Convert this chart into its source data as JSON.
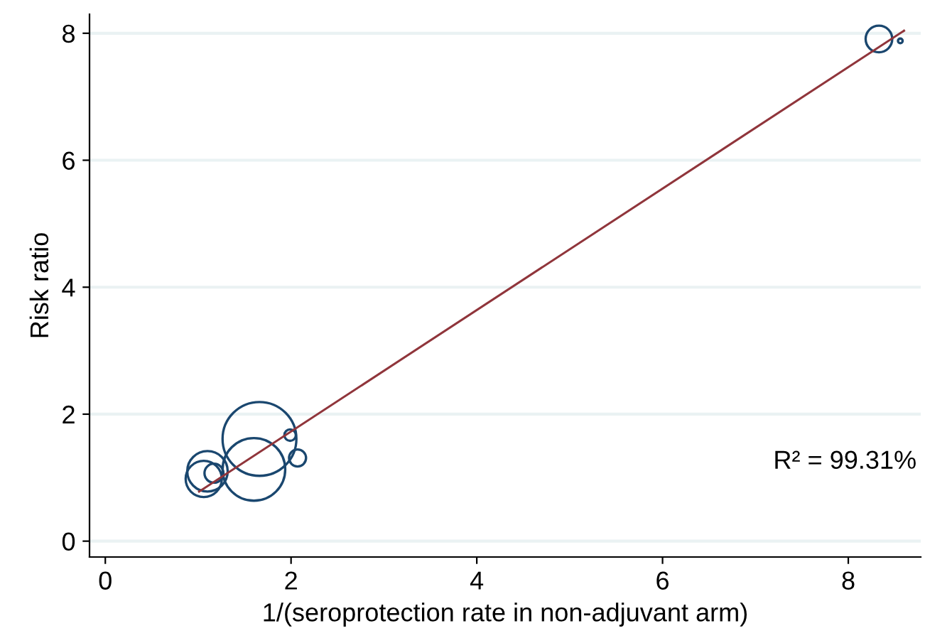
{
  "chart_data": {
    "type": "bubble",
    "xlabel": "1/(seroprotection rate in non-adjuvant arm)",
    "ylabel": "Risk ratio",
    "xlim": [
      -0.17,
      8.78
    ],
    "ylim": [
      -0.25,
      8.3
    ],
    "xticks": [
      0,
      2,
      4,
      6,
      8
    ],
    "yticks": [
      0,
      2,
      4,
      6,
      8
    ],
    "grid": "y",
    "annotations": [
      "R² = 99.31%"
    ],
    "series": [
      {
        "color": "#1a476f",
        "x": [
          1.66,
          1.6,
          1.1,
          1.06,
          1.17,
          1.99,
          2.07,
          8.33,
          8.56
        ],
        "values": [
          1.61,
          1.13,
          1.1,
          0.98,
          1.07,
          1.67,
          1.31,
          7.91,
          7.88
        ],
        "sizes": [
          1,
          0.72,
          0.3,
          0.24,
          0.066,
          0.024,
          0.053,
          0.13,
          0.004
        ]
      },
      {
        "type": "line",
        "color": "#90353b",
        "x": [
          1.01,
          8.6
        ],
        "values": [
          0.78,
          8.04
        ]
      }
    ]
  }
}
